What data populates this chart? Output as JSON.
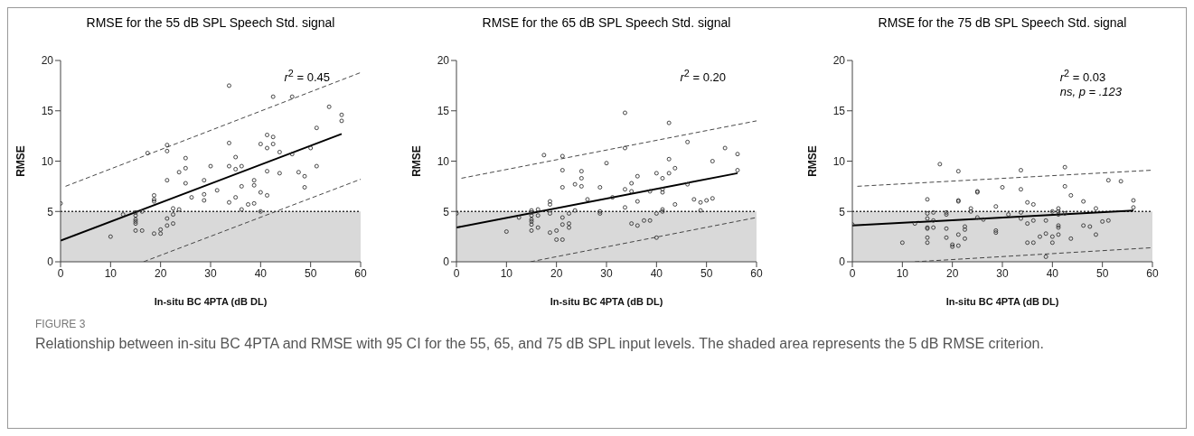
{
  "chart_data": [
    {
      "type": "scatter",
      "title": "RMSE for the 55 dB SPL Speech Std. signal",
      "xlabel": "In-situ BC 4PTA (dB DL)",
      "ylabel": "RMSE",
      "xlim": [
        0,
        60
      ],
      "xticks": [
        0,
        10,
        20,
        30,
        40,
        50,
        60
      ],
      "ylim": [
        0,
        20
      ],
      "yticks": [
        0,
        5,
        10,
        15,
        20
      ],
      "marker": "circle",
      "annotations": [
        "r$^{2}$ = 0.45"
      ],
      "bands": [
        {
          "axis": "y",
          "from": 0,
          "to": 5,
          "color": "#d9d9d9"
        }
      ],
      "ref_lines": [
        {
          "axis": "y",
          "value": 5,
          "line_style": "dotted",
          "color": "#333333"
        }
      ],
      "series": [
        {
          "color": "#333333",
          "x": [
            0,
            10,
            12.5,
            15,
            15,
            15,
            15,
            15,
            15,
            16.3,
            16.3,
            17.4,
            18.7,
            18.7,
            18.7,
            18.7,
            20,
            20,
            21.3,
            21.3,
            21.3,
            21.3,
            21.3,
            22.5,
            22.5,
            22.5,
            23.7,
            23.7,
            25,
            25,
            25,
            26.2,
            28.7,
            28.7,
            28.7,
            30,
            31.3,
            33.7,
            33.7,
            33.7,
            33.7,
            35,
            35,
            35,
            36.2,
            36.2,
            36.2,
            37.5,
            38.7,
            38.7,
            38.7,
            40,
            40,
            40,
            41.3,
            41.3,
            41.3,
            41.3,
            42.5,
            42.5,
            42.5,
            43.8,
            43.8,
            46.3,
            46.3,
            47.6,
            48.8,
            48.8,
            50,
            51.2,
            51.2,
            53.7,
            56.2,
            56.2
          ],
          "values": [
            5.8,
            2.5,
            4.7,
            4.9,
            4.6,
            4.2,
            4.0,
            3.8,
            3.1,
            3.1,
            5.0,
            10.8,
            6.6,
            6.2,
            6.0,
            2.8,
            3.2,
            2.8,
            11.6,
            11.0,
            8.1,
            4.3,
            3.6,
            5.3,
            4.7,
            3.8,
            8.9,
            5.2,
            10.3,
            9.3,
            7.8,
            6.4,
            8.1,
            6.7,
            6.1,
            9.5,
            7.1,
            17.5,
            11.8,
            9.5,
            5.9,
            10.4,
            9.2,
            6.4,
            9.5,
            7.5,
            5.2,
            5.7,
            8.1,
            7.6,
            5.8,
            11.7,
            6.9,
            5.0,
            12.6,
            11.3,
            9.0,
            6.6,
            16.4,
            12.4,
            11.7,
            10.9,
            8.8,
            16.4,
            10.7,
            8.9,
            8.5,
            7.4,
            11.3,
            13.3,
            9.5,
            15.4,
            14.6,
            14.0
          ]
        },
        {
          "type": "line",
          "color": "#000000",
          "marker": "none",
          "x": [
            0,
            56.2
          ],
          "values": [
            2.1,
            12.7
          ]
        },
        {
          "type": "line",
          "line_style": "dashed",
          "color": "#333333",
          "marker": "none",
          "x": [
            1,
            60
          ],
          "values": [
            7.5,
            18.8
          ]
        },
        {
          "type": "line",
          "line_style": "dashed",
          "color": "#333333",
          "marker": "none",
          "x": [
            16.6,
            60
          ],
          "values": [
            0,
            8.2
          ]
        }
      ]
    },
    {
      "type": "scatter",
      "title": "RMSE for the 65 dB SPL Speech Std. signal",
      "xlabel": "In-situ BC 4PTA (dB DL)",
      "ylabel": "RMSE",
      "xlim": [
        0,
        60
      ],
      "xticks": [
        0,
        10,
        20,
        30,
        40,
        50,
        60
      ],
      "ylim": [
        0,
        20
      ],
      "yticks": [
        0,
        5,
        10,
        15,
        20
      ],
      "marker": "circle",
      "annotations": [
        "r$^{2}$ = 0.20"
      ],
      "bands": [
        {
          "axis": "y",
          "from": 0,
          "to": 5,
          "color": "#d9d9d9"
        }
      ],
      "ref_lines": [
        {
          "axis": "y",
          "value": 5,
          "line_style": "dotted",
          "color": "#333333"
        }
      ],
      "series": [
        {
          "color": "#333333",
          "x": [
            0,
            10,
            12.5,
            15,
            15,
            15,
            15,
            15,
            15,
            15,
            16.3,
            16.3,
            16.3,
            17.5,
            18.7,
            18.7,
            18.7,
            18.7,
            20,
            20,
            21.2,
            21.2,
            21.2,
            21.2,
            21.2,
            21.2,
            22.5,
            22.5,
            22.5,
            23.7,
            23.7,
            25,
            25,
            25,
            26.2,
            28.7,
            28.7,
            28.7,
            30,
            31.2,
            33.7,
            33.7,
            33.7,
            33.7,
            35,
            35,
            35,
            36.2,
            36.2,
            36.2,
            37.5,
            38.7,
            38.7,
            40,
            40,
            40,
            41.2,
            41.2,
            41.2,
            41.2,
            41.2,
            42.5,
            42.5,
            42.5,
            43.7,
            43.7,
            46.2,
            46.2,
            47.5,
            48.8,
            48.8,
            50,
            51.2,
            51.2,
            53.7,
            56.2,
            56.2
          ],
          "values": [
            4.8,
            3.0,
            4.4,
            5.1,
            4.9,
            4.6,
            4.2,
            4.0,
            3.7,
            3.1,
            5.2,
            4.6,
            3.4,
            10.6,
            6.0,
            5.7,
            4.8,
            2.9,
            3.1,
            2.2,
            10.5,
            9.1,
            7.4,
            4.4,
            3.7,
            2.2,
            4.8,
            3.8,
            3.4,
            7.7,
            5.1,
            9.0,
            8.3,
            7.5,
            6.2,
            7.4,
            5.0,
            4.8,
            9.8,
            6.4,
            14.8,
            11.3,
            7.2,
            5.4,
            7.8,
            7.0,
            3.8,
            8.5,
            6.0,
            3.6,
            4.1,
            7.0,
            4.1,
            8.8,
            4.8,
            2.4,
            8.3,
            7.2,
            6.9,
            5.2,
            5.0,
            13.8,
            10.2,
            8.8,
            9.3,
            5.7,
            11.9,
            7.7,
            6.2,
            5.9,
            5.1,
            6.1,
            10.0,
            6.3,
            11.3,
            10.7,
            9.1
          ]
        },
        {
          "type": "line",
          "color": "#000000",
          "marker": "none",
          "x": [
            0,
            56.2
          ],
          "values": [
            3.4,
            8.8
          ]
        },
        {
          "type": "line",
          "line_style": "dashed",
          "color": "#333333",
          "marker": "none",
          "x": [
            1,
            60
          ],
          "values": [
            8.3,
            14.0
          ]
        },
        {
          "type": "line",
          "line_style": "dashed",
          "color": "#333333",
          "marker": "none",
          "x": [
            14.8,
            60
          ],
          "values": [
            0,
            4.4
          ]
        }
      ]
    },
    {
      "type": "scatter",
      "title": "RMSE for the 75 dB SPL Speech Std. signal",
      "xlabel": "In-situ BC 4PTA (dB DL)",
      "ylabel": "RMSE",
      "xlim": [
        0,
        60
      ],
      "xticks": [
        0,
        10,
        20,
        30,
        40,
        50,
        60
      ],
      "ylim": [
        0,
        20
      ],
      "yticks": [
        0,
        5,
        10,
        15,
        20
      ],
      "marker": "circle",
      "annotations": [
        "r$^{2}$ = 0.03",
        "ns,  p = .123"
      ],
      "bands": [
        {
          "axis": "y",
          "from": 0,
          "to": 5,
          "color": "#d9d9d9"
        }
      ],
      "ref_lines": [
        {
          "axis": "y",
          "value": 5,
          "line_style": "dotted",
          "color": "#333333"
        }
      ],
      "series": [
        {
          "color": "#333333",
          "x": [
            0,
            10,
            12.5,
            15,
            15,
            15,
            15,
            15,
            15,
            15,
            16.2,
            16.2,
            16.2,
            17.5,
            18.8,
            18.8,
            18.8,
            18.8,
            20,
            20,
            21.2,
            21.2,
            21.2,
            21.2,
            21.2,
            22.5,
            22.5,
            22.5,
            23.7,
            23.7,
            25,
            25,
            25,
            26.2,
            28.7,
            28.7,
            28.7,
            30,
            31.2,
            33.7,
            33.7,
            33.7,
            33.7,
            35,
            35,
            35,
            36.2,
            36.2,
            36.2,
            37.5,
            38.7,
            38.7,
            38.7,
            40,
            40,
            40,
            41.2,
            41.2,
            41.2,
            41.2,
            41.2,
            41.2,
            42.5,
            42.5,
            42.5,
            43.7,
            43.7,
            46.2,
            46.2,
            47.5,
            48.7,
            48.7,
            50,
            51.2,
            51.2,
            53.7,
            56.2,
            56.2
          ],
          "values": [
            3.7,
            1.9,
            3.8,
            6.2,
            4.8,
            4.3,
            3.4,
            3.3,
            2.4,
            1.9,
            4.9,
            4.1,
            3.4,
            9.7,
            4.9,
            4.7,
            3.3,
            2.4,
            1.7,
            1.5,
            9.0,
            6.1,
            6.0,
            2.7,
            1.6,
            3.5,
            3.2,
            2.3,
            5.3,
            5.0,
            7.0,
            6.9,
            4.4,
            4.2,
            5.5,
            3.1,
            2.9,
            7.4,
            4.7,
            9.1,
            7.2,
            4.9,
            4.3,
            5.9,
            3.8,
            1.9,
            5.7,
            4.1,
            1.9,
            2.5,
            4.1,
            2.8,
            0.5,
            5.0,
            2.5,
            1.9,
            5.3,
            5.0,
            4.7,
            3.6,
            3.4,
            2.7,
            9.4,
            7.5,
            4.8,
            6.6,
            2.3,
            6.0,
            3.6,
            3.5,
            5.3,
            2.7,
            4.0,
            8.1,
            4.1,
            8.0,
            6.1,
            5.4
          ]
        },
        {
          "type": "line",
          "color": "#000000",
          "marker": "none",
          "x": [
            0,
            56.2
          ],
          "values": [
            3.6,
            5.1
          ]
        },
        {
          "type": "line",
          "line_style": "dashed",
          "color": "#333333",
          "marker": "none",
          "x": [
            1,
            60
          ],
          "values": [
            7.5,
            9.1
          ]
        },
        {
          "type": "line",
          "line_style": "dashed",
          "color": "#333333",
          "marker": "none",
          "x": [
            12.5,
            60
          ],
          "values": [
            0,
            1.4
          ]
        }
      ]
    },
    {
      "type": "other",
      "title": "FIGURE 3",
      "annotations": [
        "Relationship between in-situ BC 4PTA and RMSE with 95 CI for the 55, 65, and 75 dB SPL input levels. The shaded area represents the 5 dB RMSE criterion."
      ]
    }
  ]
}
